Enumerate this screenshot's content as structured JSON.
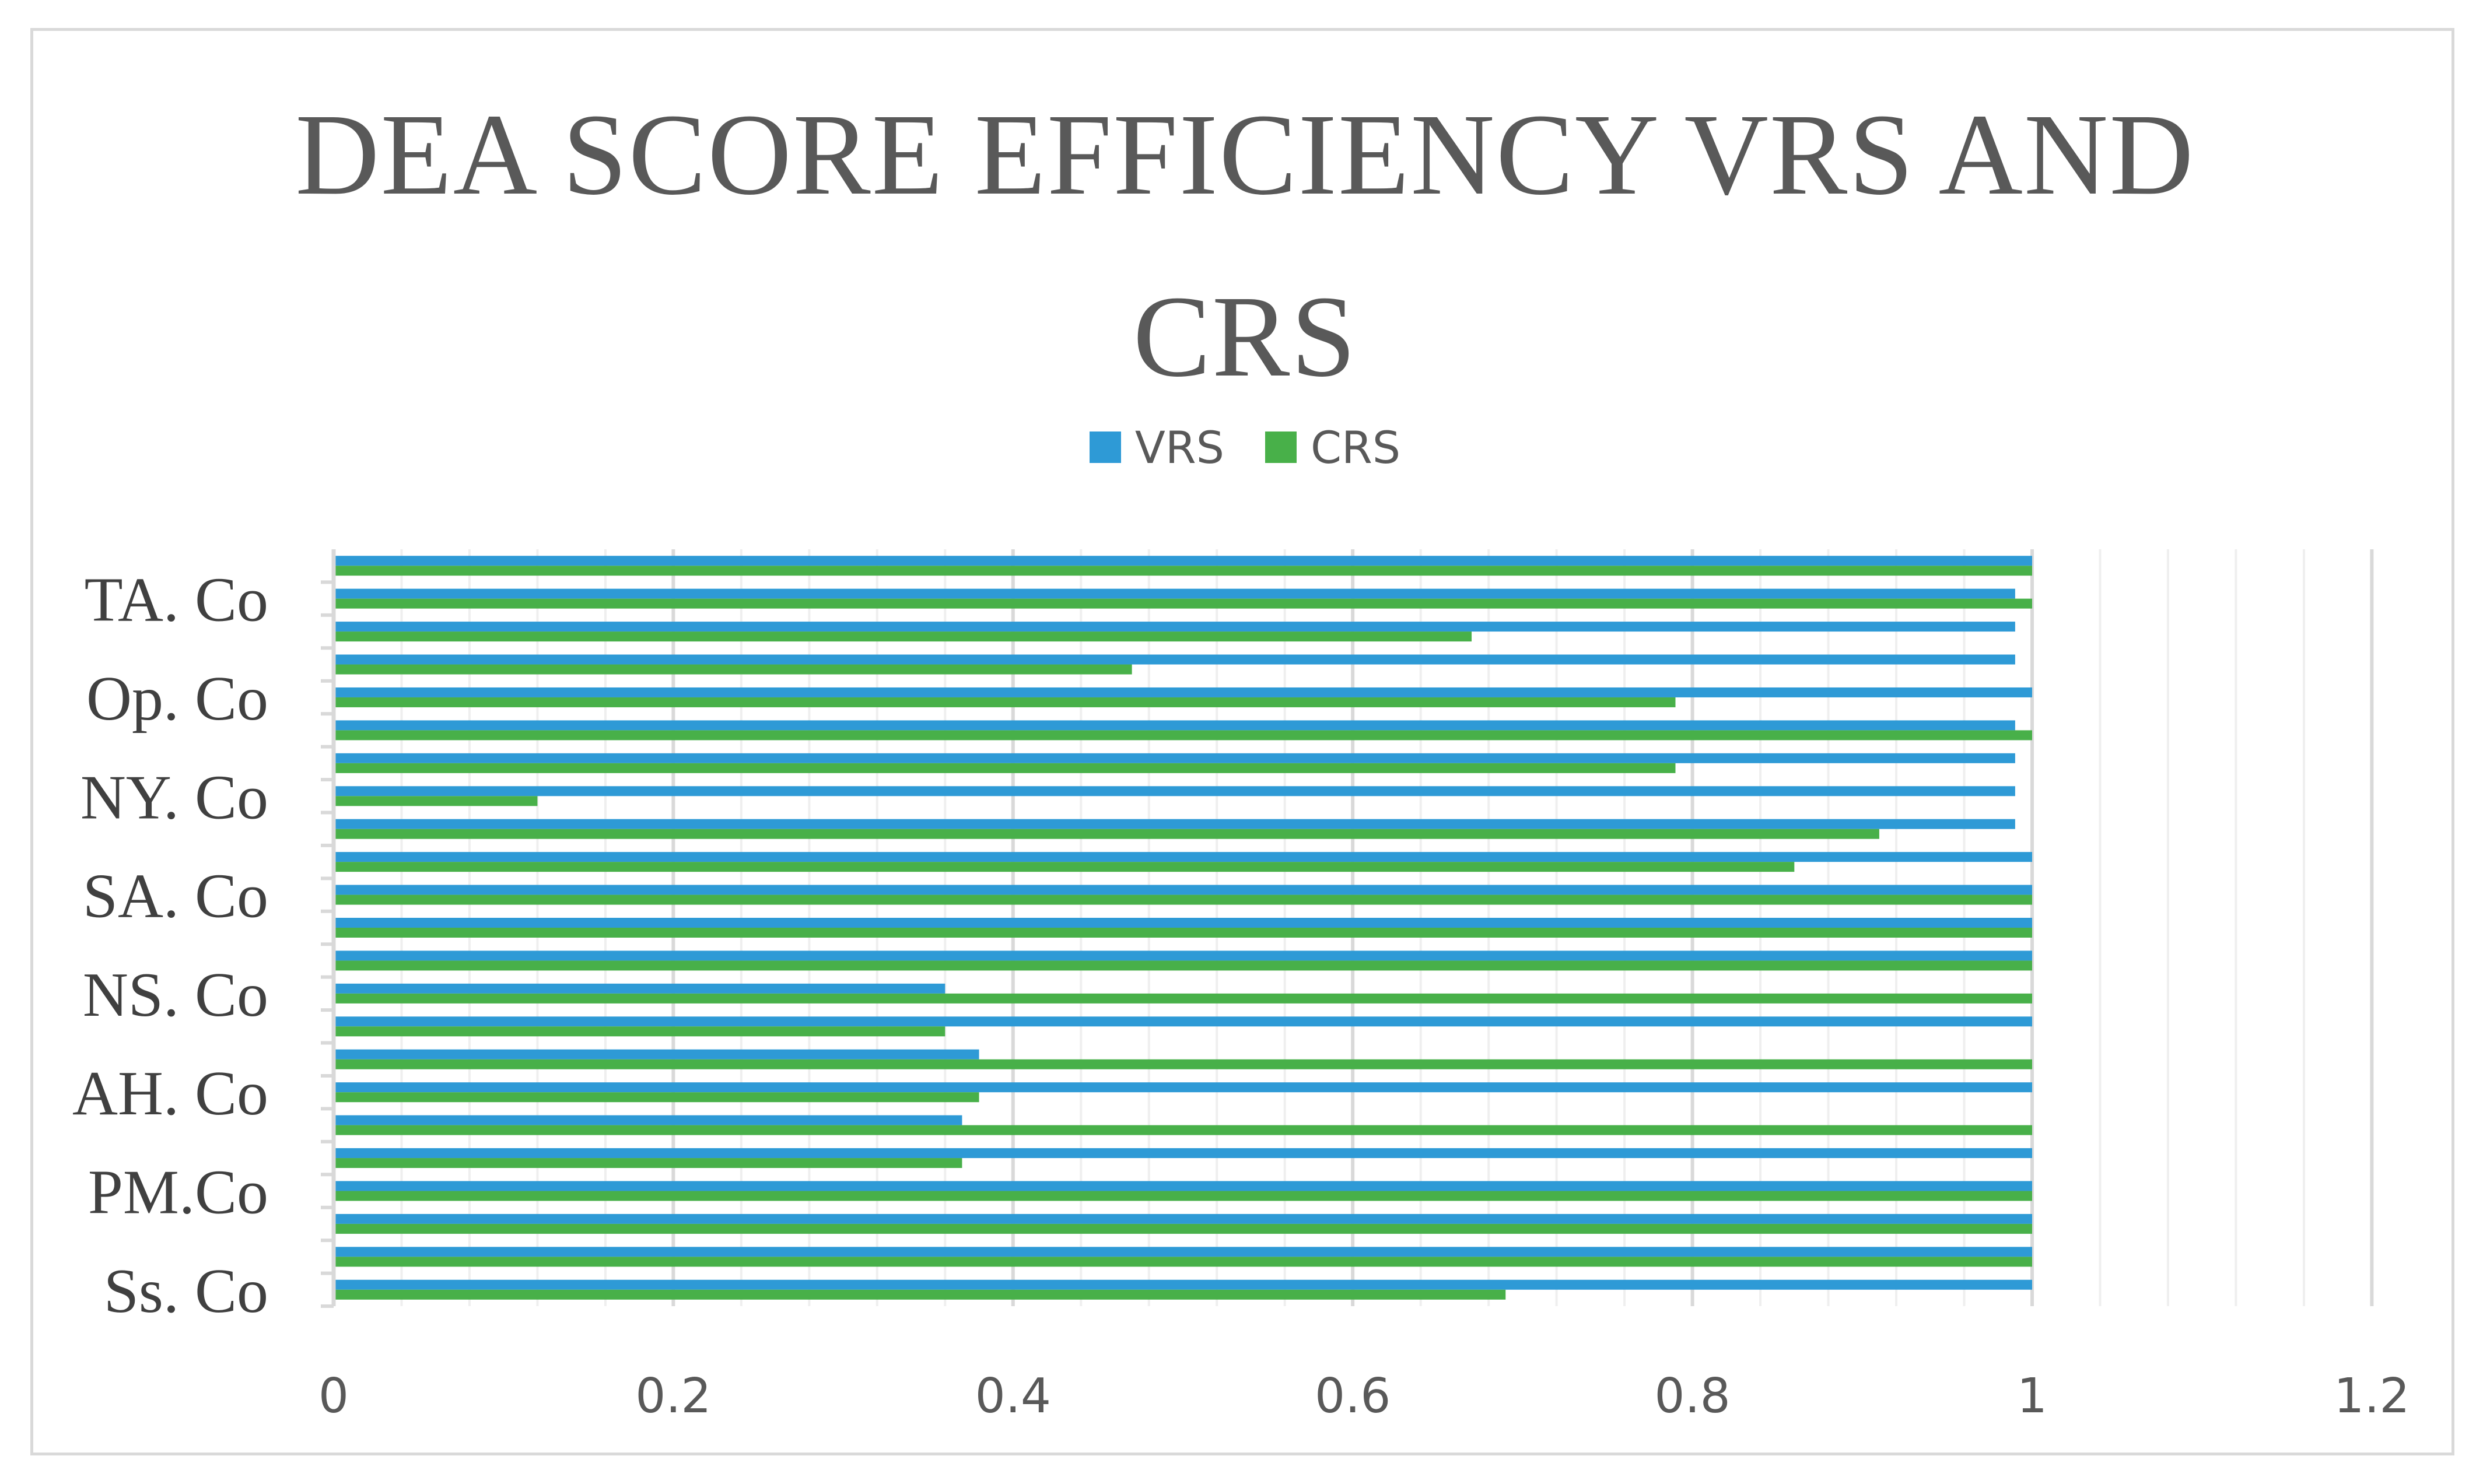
{
  "chart_data": {
    "type": "bar",
    "orientation": "horizontal",
    "title_lines": [
      "DEA SCORE EFFICIENCY VRS AND",
      "CRS"
    ],
    "xlabel": "",
    "ylabel": "",
    "xlim": [
      0,
      1.2
    ],
    "x_ticks": [
      "0",
      "0.2",
      "0.4",
      "0.6",
      "0.8",
      "1",
      "1.2"
    ],
    "grid": "vertical",
    "legend_position": "top",
    "y_tick_labels": [
      "Ss. Co",
      "PM.Co",
      "AH. Co",
      "NS. Co",
      "SA. Co",
      "NY. Co",
      "Op. Co",
      "TA. Co"
    ],
    "categories": [
      "Ss. Co",
      "",
      "",
      "PM.Co",
      "",
      "",
      "AH. Co",
      "",
      "",
      "NS. Co",
      "",
      "",
      "SA. Co",
      "",
      "",
      "NY. Co",
      "",
      "",
      "Op. Co",
      "",
      "",
      "TA. Co",
      ""
    ],
    "series": [
      {
        "name": "VRS",
        "color": "#2e9ad6",
        "values": [
          1,
          1,
          1,
          1,
          1,
          0.37,
          1,
          0.38,
          1,
          0.36,
          1,
          1,
          1,
          1,
          0.99,
          0.99,
          0.99,
          0.99,
          1,
          0.99,
          0.99,
          0.99,
          1
        ]
      },
      {
        "name": "CRS",
        "color": "#48b049",
        "values": [
          0.69,
          1,
          1,
          1,
          0.37,
          1,
          0.38,
          1,
          0.36,
          1,
          1,
          1,
          1,
          0.86,
          0.91,
          0.12,
          0.79,
          1,
          0.79,
          0.47,
          0.67,
          1,
          1
        ]
      }
    ]
  }
}
